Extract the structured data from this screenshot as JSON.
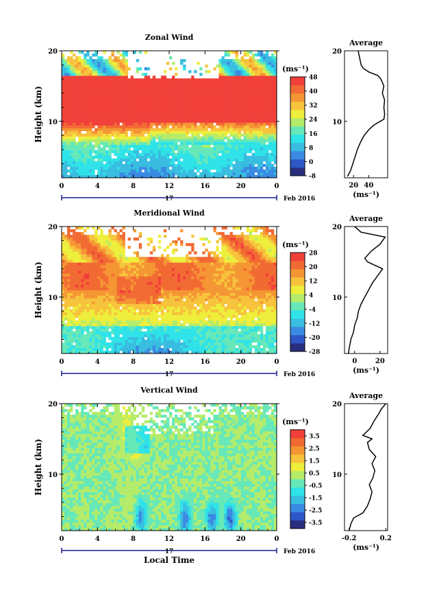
{
  "height_ticks": [
    "10",
    "20"
  ],
  "height_label": "Height (km)",
  "time_ticks": [
    "0",
    "4",
    "8",
    "12",
    "16",
    "20",
    "0"
  ],
  "date": {
    "day": "17",
    "label": "Feb 2016"
  },
  "xlabel": "Local Time",
  "average_title": "Average",
  "unit": "(ms⁻¹)",
  "colors": {
    "palette": [
      "#2a2e7e",
      "#2e57c7",
      "#3a8ae3",
      "#39bde0",
      "#2fe3e8",
      "#66e8b9",
      "#b4ec6a",
      "#eeee3c",
      "#f7c33c",
      "#f59634",
      "#f26a33",
      "#f1403a"
    ]
  },
  "chart_data": [
    {
      "type": "heatmap",
      "title": "Zonal Wind",
      "xlabel": "Local Time",
      "ylabel": "Height (km)",
      "x_range": [
        0,
        24
      ],
      "y_range": [
        2,
        20
      ],
      "colorbar": {
        "unit": "(ms⁻¹)",
        "min": -8,
        "max": 48,
        "labels": [
          "-8",
          "0",
          "8",
          "16",
          "24",
          "32",
          "40",
          "48"
        ],
        "label_values": [
          -8,
          0,
          8,
          16,
          24,
          32,
          40,
          48
        ]
      },
      "profile": {
        "title": "Average",
        "xlabel": "(ms⁻¹)",
        "ticks": [
          "20",
          "40"
        ],
        "tick_values": [
          20,
          40
        ],
        "x_range": [
          8,
          65
        ],
        "points": [
          [
            12,
            2.2
          ],
          [
            16,
            3.0
          ],
          [
            19,
            4.0
          ],
          [
            22,
            5.0
          ],
          [
            25,
            6.0
          ],
          [
            29,
            7.0
          ],
          [
            34,
            8.0
          ],
          [
            40,
            8.8
          ],
          [
            46,
            9.4
          ],
          [
            52,
            9.8
          ],
          [
            60,
            10.3
          ],
          [
            61,
            11.0
          ],
          [
            60,
            12.0
          ],
          [
            61,
            13.0
          ],
          [
            58,
            14.0
          ],
          [
            60,
            15.0
          ],
          [
            56,
            16.0
          ],
          [
            52,
            16.5
          ],
          [
            40,
            17.0
          ],
          [
            33,
            17.5
          ],
          [
            30,
            18.0
          ],
          [
            28,
            19.0
          ],
          [
            26,
            20.0
          ]
        ]
      }
    },
    {
      "type": "heatmap",
      "title": "Meridional Wind",
      "xlabel": "Local Time",
      "ylabel": "Height (km)",
      "x_range": [
        0,
        24
      ],
      "y_range": [
        2,
        20
      ],
      "colorbar": {
        "unit": "(ms⁻¹)",
        "min": -28,
        "max": 28,
        "labels": [
          "-28",
          "-20",
          "-12",
          "-4",
          "4",
          "12",
          "20",
          "28"
        ],
        "label_values": [
          -28,
          -20,
          -12,
          -4,
          4,
          12,
          20,
          28
        ]
      },
      "profile": {
        "title": "Average",
        "xlabel": "(ms⁻¹)",
        "ticks": [
          "0",
          "20"
        ],
        "tick_values": [
          0,
          20
        ],
        "x_range": [
          -8,
          26
        ],
        "points": [
          [
            -5,
            2.0
          ],
          [
            -4,
            3.0
          ],
          [
            -3,
            4.0
          ],
          [
            -1,
            5.0
          ],
          [
            0,
            6.0
          ],
          [
            2,
            7.0
          ],
          [
            3,
            8.0
          ],
          [
            5,
            9.0
          ],
          [
            8,
            10.0
          ],
          [
            11,
            11.0
          ],
          [
            14,
            12.0
          ],
          [
            18,
            13.0
          ],
          [
            22,
            14.0
          ],
          [
            10,
            15.0
          ],
          [
            8,
            15.5
          ],
          [
            13,
            16.5
          ],
          [
            20,
            17.5
          ],
          [
            24,
            18.5
          ],
          [
            5,
            19.2
          ],
          [
            0,
            20.0
          ]
        ]
      }
    },
    {
      "type": "heatmap",
      "title": "Vertical Wind",
      "xlabel": "Local Time",
      "ylabel": "Height (km)",
      "x_range": [
        0,
        24
      ],
      "y_range": [
        2,
        20
      ],
      "colorbar": {
        "unit": "(ms⁻¹)",
        "min": -4,
        "max": 4,
        "labels": [
          "-3.5",
          "-2.5",
          "-1.5",
          "-0.5",
          "0.5",
          "1.5",
          "2.5",
          "3.5"
        ],
        "label_values": [
          -3.5,
          -2.5,
          -1.5,
          -0.5,
          0.5,
          1.5,
          2.5,
          3.5
        ]
      },
      "profile": {
        "title": "Average",
        "xlabel": "(ms⁻¹)",
        "ticks": [
          "-0.2",
          "0.2"
        ],
        "tick_values": [
          -0.2,
          0.2
        ],
        "x_range": [
          -0.25,
          0.22
        ],
        "points": [
          [
            -0.2,
            2.0
          ],
          [
            -0.18,
            3.0
          ],
          [
            -0.15,
            3.8
          ],
          [
            -0.05,
            4.5
          ],
          [
            0.0,
            5.5
          ],
          [
            0.03,
            6.5
          ],
          [
            0.05,
            7.5
          ],
          [
            0.02,
            8.5
          ],
          [
            0.06,
            9.5
          ],
          [
            0.08,
            10.5
          ],
          [
            0.05,
            11.5
          ],
          [
            0.09,
            12.5
          ],
          [
            0.02,
            13.5
          ],
          [
            0.0,
            14.5
          ],
          [
            0.05,
            15.0
          ],
          [
            -0.05,
            15.5
          ],
          [
            0.03,
            16.5
          ],
          [
            0.07,
            17.5
          ],
          [
            0.12,
            18.5
          ],
          [
            0.15,
            19.2
          ],
          [
            0.2,
            20.0
          ]
        ]
      }
    }
  ]
}
